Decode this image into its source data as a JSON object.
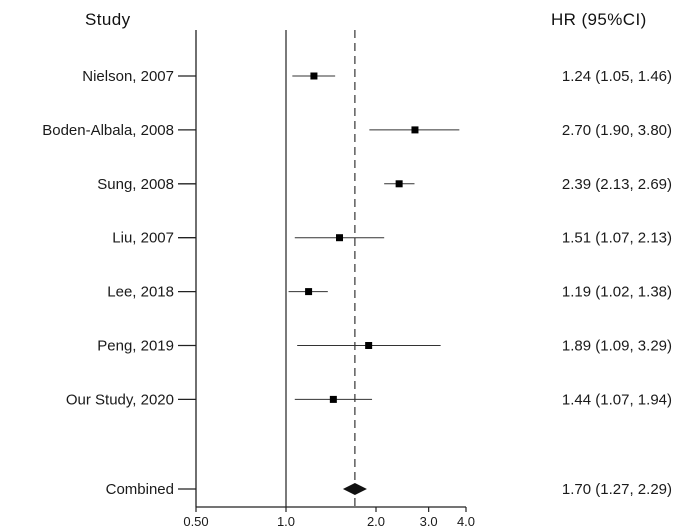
{
  "headers": {
    "study": "Study",
    "hr": "HR (95%CI)"
  },
  "chart_data": {
    "type": "forest",
    "x_scale": "log",
    "xlim": [
      0.5,
      4.0
    ],
    "x_ticks": [
      {
        "value": 0.5,
        "label": "0.50"
      },
      {
        "value": 1.0,
        "label": "1.0"
      },
      {
        "value": 2.0,
        "label": "2.0"
      },
      {
        "value": 3.0,
        "label": "3.0"
      },
      {
        "value": 4.0,
        "label": "4.0"
      }
    ],
    "reference_line": 1.0,
    "pooled_line": 1.7,
    "studies": [
      {
        "label": "Nielson, 2007",
        "hr": 1.24,
        "lower": 1.05,
        "upper": 1.46,
        "ci_text": "1.24 (1.05, 1.46)"
      },
      {
        "label": "Boden-Albala, 2008",
        "hr": 2.7,
        "lower": 1.9,
        "upper": 3.8,
        "ci_text": "2.70 (1.90, 3.80)"
      },
      {
        "label": "Sung, 2008",
        "hr": 2.39,
        "lower": 2.13,
        "upper": 2.69,
        "ci_text": "2.39 (2.13, 2.69)"
      },
      {
        "label": "Liu, 2007",
        "hr": 1.51,
        "lower": 1.07,
        "upper": 2.13,
        "ci_text": "1.51 (1.07, 2.13)"
      },
      {
        "label": "Lee, 2018",
        "hr": 1.19,
        "lower": 1.02,
        "upper": 1.38,
        "ci_text": "1.19 (1.02, 1.38)"
      },
      {
        "label": "Peng, 2019",
        "hr": 1.89,
        "lower": 1.09,
        "upper": 3.29,
        "ci_text": "1.89 (1.09, 3.29)"
      },
      {
        "label": "Our Study, 2020",
        "hr": 1.44,
        "lower": 1.07,
        "upper": 1.94,
        "ci_text": "1.44 (1.07, 1.94)"
      }
    ],
    "combined": {
      "label": "Combined",
      "hr": 1.7,
      "lower": 1.27,
      "upper": 2.29,
      "ci_text": "1.70 (1.27, 2.29)"
    }
  }
}
